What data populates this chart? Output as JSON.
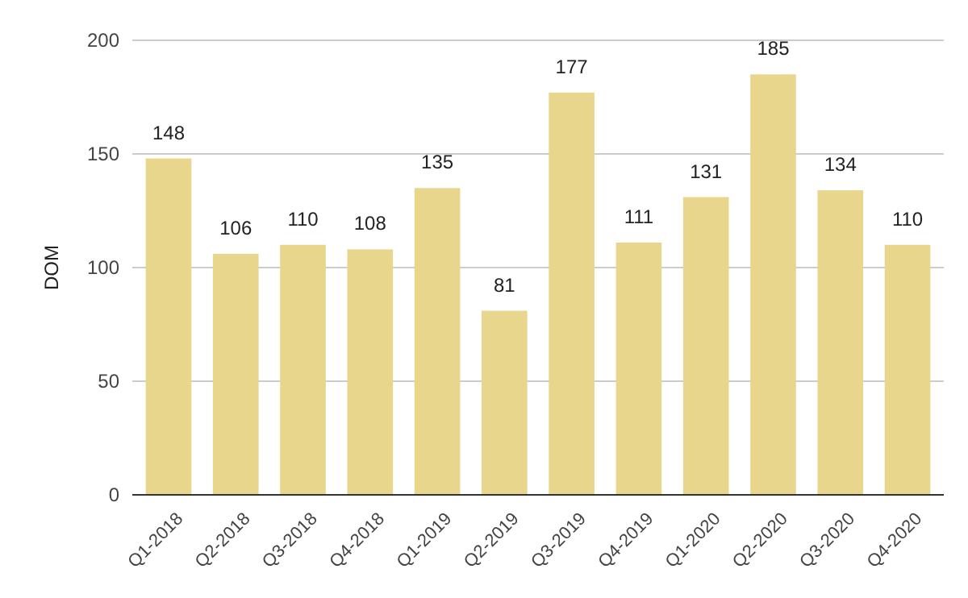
{
  "chart_data": {
    "type": "bar",
    "ylabel": "DOM",
    "categories": [
      "Q1-2018",
      "Q2-2018",
      "Q3-2018",
      "Q4-2018",
      "Q1-2019",
      "Q2-2019",
      "Q3-2019",
      "Q4-2019",
      "Q1-2020",
      "Q2-2020",
      "Q3-2020",
      "Q4-2020"
    ],
    "values": [
      148,
      106,
      110,
      108,
      135,
      81,
      177,
      111,
      131,
      185,
      134,
      110
    ],
    "color": "#e8d68c",
    "ylim": [
      0,
      200
    ],
    "yticks": [
      0,
      50,
      100,
      150,
      200
    ],
    "grid": "y",
    "data_labels": true
  }
}
